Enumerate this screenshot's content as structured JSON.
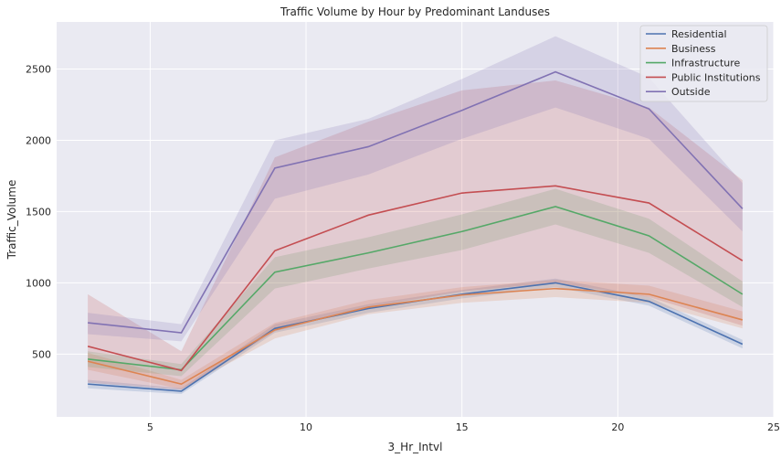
{
  "chart_data": {
    "type": "line",
    "title": "Traffic Volume by Hour by Predominant Landuses",
    "xlabel": "3_Hr_Intvl",
    "ylabel": "Traffic_Volume",
    "xlim": [
      2,
      25
    ],
    "ylim": [
      60,
      2830
    ],
    "xticks": [
      5,
      10,
      15,
      20,
      25
    ],
    "yticks": [
      500,
      1000,
      1500,
      2000,
      2500
    ],
    "grid": true,
    "legend_position": "top-right",
    "x": [
      3,
      6,
      9,
      12,
      15,
      18,
      21,
      24
    ],
    "series": [
      {
        "name": "Residential",
        "color": "#4c72b0",
        "values": [
          290,
          240,
          680,
          820,
          920,
          1000,
          870,
          570
        ],
        "ci_low": [
          260,
          220,
          650,
          790,
          890,
          970,
          840,
          540
        ],
        "ci_high": [
          320,
          260,
          710,
          850,
          950,
          1030,
          900,
          600
        ]
      },
      {
        "name": "Business",
        "color": "#dd8452",
        "values": [
          450,
          290,
          670,
          830,
          915,
          960,
          920,
          740
        ],
        "ci_low": [
          390,
          255,
          610,
          780,
          860,
          900,
          860,
          680
        ],
        "ci_high": [
          510,
          320,
          720,
          880,
          970,
          1020,
          980,
          800
        ]
      },
      {
        "name": "Infrastructure",
        "color": "#55a868",
        "values": [
          465,
          390,
          1075,
          1210,
          1360,
          1535,
          1330,
          920
        ],
        "ci_low": [
          410,
          345,
          960,
          1100,
          1230,
          1410,
          1210,
          830
        ],
        "ci_high": [
          520,
          430,
          1180,
          1320,
          1480,
          1660,
          1450,
          1010
        ]
      },
      {
        "name": "Public Institutions",
        "color": "#c44e52",
        "values": [
          555,
          385,
          1225,
          1475,
          1630,
          1680,
          1560,
          1155
        ],
        "ci_low": [
          300,
          250,
          660,
          830,
          940,
          1000,
          900,
          700
        ],
        "ci_high": [
          920,
          520,
          1880,
          2130,
          2350,
          2420,
          2230,
          1720
        ]
      },
      {
        "name": "Outside",
        "color": "#8172b3",
        "values": [
          720,
          650,
          1805,
          1955,
          2210,
          2480,
          2220,
          1520
        ],
        "ci_low": [
          640,
          590,
          1590,
          1760,
          2010,
          2230,
          2010,
          1360
        ],
        "ci_high": [
          790,
          710,
          2000,
          2150,
          2430,
          2730,
          2440,
          1700
        ]
      }
    ]
  }
}
